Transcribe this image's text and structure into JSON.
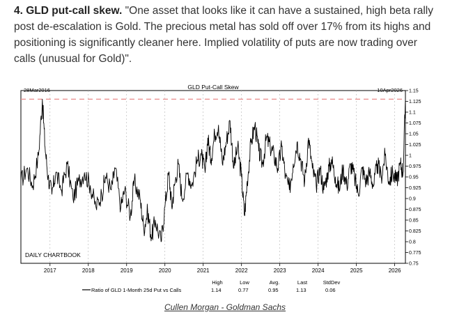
{
  "intro": {
    "heading": "4. GLD put-call skew.",
    "text": " \"One asset that looks like it can have a sustained, high beta rally post de-escalation is Gold. The precious metal has sold off over 17% from its highs and positioning is significantly cleaner here. Implied volatility of puts are now trading over calls (unusual for Gold)\"."
  },
  "source": "Cullen Morgan - Goldman Sachs",
  "colors": {
    "line": "#000000",
    "reference": "#e88a8a",
    "grid": "#b0b0b0",
    "text": "#333333"
  },
  "chart_data": {
    "type": "line",
    "title": "GLD Put-Call Skew",
    "start_label": "28Mar2016",
    "end_label": "10Apr2026",
    "watermark": "DAILY CHARTBOOK",
    "xlim": [
      2016.24,
      2026.28
    ],
    "ylim": [
      0.75,
      1.15
    ],
    "x_ticks": [
      2017,
      2018,
      2019,
      2020,
      2021,
      2022,
      2023,
      2024,
      2025,
      2026
    ],
    "x_tick_labels": [
      "2017",
      "2018",
      "2019",
      "2020",
      "2021",
      "2022",
      "2023",
      "2024",
      "2025",
      "2026"
    ],
    "y_ticks": [
      0.75,
      0.775,
      0.8,
      0.825,
      0.85,
      0.875,
      0.9,
      0.925,
      0.95,
      0.975,
      1,
      1.025,
      1.05,
      1.075,
      1.1,
      1.125,
      1.15
    ],
    "y_tick_labels": [
      "0.75",
      "0.775",
      "0.8",
      "0.825",
      "0.85",
      "0.875",
      "0.9",
      "0.925",
      "0.95",
      "0.975",
      "1",
      "1.025",
      "1.05",
      "1.075",
      "1.1",
      "1.125",
      "1.15"
    ],
    "reference_line": 1.13,
    "series": [
      {
        "name": "Ratio of GLD 1-Month 25d Put vs Calls",
        "x": [
          2016.24,
          2016.4,
          2016.55,
          2016.7,
          2016.8,
          2016.87,
          2016.95,
          2017.05,
          2017.15,
          2017.3,
          2017.45,
          2017.6,
          2017.75,
          2017.9,
          2018.05,
          2018.2,
          2018.35,
          2018.45,
          2018.6,
          2018.7,
          2018.85,
          2018.95,
          2019.1,
          2019.2,
          2019.35,
          2019.45,
          2019.55,
          2019.65,
          2019.75,
          2019.9,
          2020.0,
          2020.1,
          2020.18,
          2020.25,
          2020.35,
          2020.45,
          2020.6,
          2020.7,
          2020.85,
          2020.95,
          2021.05,
          2021.12,
          2021.2,
          2021.3,
          2021.4,
          2021.5,
          2021.6,
          2021.7,
          2021.8,
          2021.9,
          2022.0,
          2022.08,
          2022.15,
          2022.25,
          2022.35,
          2022.45,
          2022.55,
          2022.65,
          2022.75,
          2022.85,
          2022.95,
          2023.05,
          2023.15,
          2023.25,
          2023.35,
          2023.45,
          2023.55,
          2023.65,
          2023.75,
          2023.85,
          2023.95,
          2024.05,
          2024.15,
          2024.25,
          2024.35,
          2024.45,
          2024.55,
          2024.65,
          2024.75,
          2024.85,
          2024.95,
          2025.05,
          2025.15,
          2025.25,
          2025.35,
          2025.45,
          2025.55,
          2025.65,
          2025.75,
          2025.85,
          2025.95,
          2026.05,
          2026.15,
          2026.22,
          2026.28
        ],
        "y": [
          0.94,
          0.97,
          0.93,
          1.0,
          1.13,
          1.02,
          0.95,
          0.91,
          0.96,
          0.92,
          0.98,
          0.9,
          0.94,
          0.96,
          0.93,
          0.88,
          0.91,
          0.95,
          0.92,
          0.97,
          0.88,
          0.92,
          0.86,
          0.94,
          0.9,
          0.83,
          0.87,
          0.81,
          0.85,
          0.8,
          0.88,
          0.96,
          0.88,
          0.93,
          0.98,
          0.9,
          0.96,
          0.93,
          0.99,
          1.0,
          0.96,
          1.04,
          0.99,
          1.05,
          1.07,
          0.98,
          1.03,
          1.08,
          0.97,
          1.02,
          0.95,
          0.86,
          0.94,
          1.03,
          1.07,
          1.01,
          0.98,
          1.04,
          1.02,
          1.0,
          0.97,
          1.02,
          0.95,
          0.92,
          0.98,
          1.03,
          0.99,
          0.94,
          1.04,
          0.97,
          0.93,
          0.97,
          0.92,
          0.96,
          0.99,
          0.95,
          0.92,
          0.97,
          0.93,
          0.98,
          0.95,
          0.91,
          0.97,
          0.94,
          0.96,
          0.93,
          0.98,
          0.95,
          1.0,
          0.94,
          0.96,
          0.94,
          0.98,
          0.96,
          1.13
        ]
      }
    ],
    "stats": {
      "legend_label": "Ratio of GLD 1-Month 25d Put vs Calls",
      "headers": [
        "High",
        "Low",
        "Avg.",
        "Last",
        "StdDev"
      ],
      "values": [
        "1.14",
        "0.77",
        "0.95",
        "1.13",
        "0.06"
      ]
    }
  }
}
